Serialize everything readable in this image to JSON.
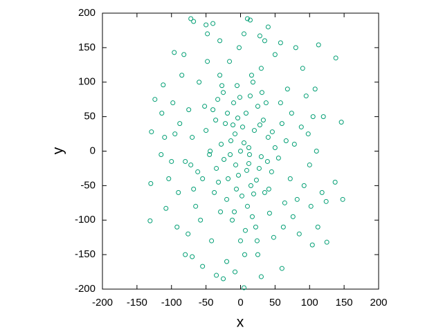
{
  "chart_data": {
    "type": "scatter",
    "xlabel": "x",
    "ylabel": "y",
    "color": "#009e73",
    "xlim": [
      -200,
      200
    ],
    "ylim": [
      -200,
      200
    ],
    "xticks": [
      -200,
      -150,
      -100,
      -50,
      0,
      50,
      100,
      150,
      200
    ],
    "yticks": [
      -200,
      -150,
      -100,
      -50,
      0,
      50,
      100,
      150,
      200
    ],
    "x": [
      0,
      5,
      -8,
      12,
      -15,
      20,
      -22,
      8,
      -3,
      15,
      -28,
      30,
      -10,
      25,
      -35,
      40,
      -5,
      18,
      -20,
      10,
      35,
      -40,
      45,
      -12,
      22,
      -30,
      30,
      0,
      -45,
      50,
      3,
      -6,
      14,
      -18,
      27,
      -25,
      33,
      -38,
      42,
      -2,
      6,
      -50,
      55,
      -55,
      60,
      -60,
      62,
      -65,
      68,
      -70,
      72,
      -75,
      78,
      -80,
      82,
      -48,
      50,
      -42,
      48,
      -30,
      35,
      -20,
      25,
      5,
      -8,
      12,
      -14,
      9,
      -4,
      19,
      -24,
      28,
      -32,
      37,
      -9,
      16,
      -27,
      41,
      -44,
      46,
      -16,
      24,
      -36,
      7,
      -1,
      13,
      -19,
      23,
      -29,
      31,
      -11,
      17,
      -33,
      39,
      -7,
      2,
      -52,
      58,
      -58,
      64,
      -62,
      66,
      -68,
      74,
      -72,
      76,
      88,
      -88,
      92,
      -90,
      95,
      100,
      105,
      -98,
      -85,
      85,
      90,
      -92,
      110,
      102,
      -104,
      98,
      -95,
      80,
      -82,
      108,
      120,
      118,
      -115,
      -40,
      40,
      -25,
      -72,
      -68,
      -50,
      -48,
      10,
      14,
      28,
      58,
      113,
      138,
      146,
      148,
      137,
      124,
      125,
      104,
      112,
      -129,
      -124,
      -130,
      -108,
      -112,
      -96,
      -114,
      -110,
      -100,
      -76,
      -80,
      -70,
      -55,
      -35,
      5,
      30,
      60,
      -131
    ],
    "values": [
      0,
      12,
      25,
      -18,
      -5,
      30,
      40,
      55,
      -35,
      -50,
      10,
      -8,
      70,
      65,
      -25,
      20,
      95,
      100,
      -70,
      -80,
      -60,
      60,
      -30,
      -100,
      -110,
      110,
      120,
      -130,
      -5,
      5,
      35,
      -55,
      80,
      -40,
      -25,
      85,
      45,
      -60,
      -90,
      150,
      -150,
      30,
      -10,
      -40,
      40,
      100,
      -110,
      -80,
      90,
      20,
      -40,
      60,
      10,
      -15,
      -70,
      130,
      140,
      -130,
      -125,
      160,
      160,
      -160,
      -150,
      170,
      -175,
      5,
      15,
      -28,
      48,
      -62,
      -12,
      38,
      -45,
      70,
      -88,
      110,
      95,
      -55,
      0,
      28,
      130,
      -130,
      45,
      -115,
      78,
      -5,
      55,
      -42,
      -88,
      85,
      38,
      -95,
      75,
      -15,
      -20,
      -65,
      65,
      70,
      -100,
      -75,
      -30,
      15,
      -55,
      55,
      -20,
      -95,
      35,
      40,
      -50,
      -60,
      80,
      -20,
      50,
      70,
      110,
      -120,
      120,
      -110,
      0,
      -80,
      -40,
      25,
      25,
      150,
      140,
      90,
      50,
      -60,
      -5,
      185,
      180,
      -185,
      192,
      188,
      183,
      170,
      192,
      190,
      167,
      157,
      154,
      135,
      42,
      -70,
      -45,
      -73,
      -132,
      -136,
      -110,
      28,
      75,
      -47,
      -83,
      96,
      143,
      55,
      20,
      -15,
      -120,
      -150,
      -153,
      -167,
      -180,
      -198,
      -182,
      -170,
      -101
    ]
  }
}
